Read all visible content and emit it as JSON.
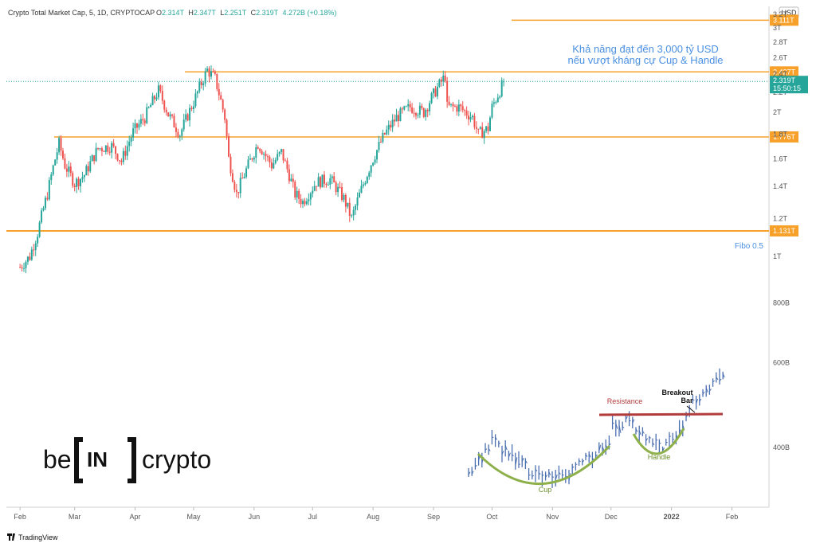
{
  "header": {
    "symbol": "Crypto Total Market Cap, 5, 1D, CRYPTOCAP",
    "open_label": "O",
    "open": "2.314T",
    "high_label": "H",
    "high": "2.347T",
    "low_label": "L",
    "low": "2.251T",
    "close_label": "C",
    "close": "2.319T",
    "change": "4.272B (+0.18%)"
  },
  "currency_badge": "USD",
  "annotation": {
    "line1": "Khả năng đạt đến 3,000 tỷ USD",
    "line2": "nếu vượt kháng cự Cup & Handle"
  },
  "fibo_label": "Fibo 0.5",
  "brand": {
    "left": "be",
    "middle": "IN",
    "right": "crypto"
  },
  "footer": {
    "brand": "TradingView"
  },
  "current_price": {
    "value": "2.319T",
    "countdown": "15:50:15"
  },
  "colors": {
    "up": "#26a69a",
    "down": "#ef5350",
    "level": "#f7a12a",
    "annotation": "#4a90e2",
    "current": "#26a69a"
  },
  "chart_data": {
    "type": "candlestick",
    "yscale": "log",
    "ylim": [
      0.3,
      3.2
    ],
    "y_ticks": [
      "400B",
      "600B",
      "800B",
      "1T",
      "1.2T",
      "1.4T",
      "1.6T",
      "1.8T",
      "2T",
      "2.2T",
      "2.4T",
      "2.6T",
      "2.8T",
      "3T",
      "3.2T"
    ],
    "y_tick_values": [
      0.4,
      0.6,
      0.8,
      1.0,
      1.2,
      1.4,
      1.6,
      1.8,
      2.0,
      2.2,
      2.4,
      2.6,
      2.8,
      3.0,
      3.2
    ],
    "x_ticks": [
      "Feb",
      "Mar",
      "Apr",
      "May",
      "Jun",
      "Jul",
      "Aug",
      "Sep",
      "Oct",
      "Nov",
      "Dec",
      "2022",
      "Feb"
    ],
    "levels": [
      {
        "value": 3.111,
        "label": "3.111T"
      },
      {
        "value": 2.427,
        "label": "2.427T"
      },
      {
        "value": 1.776,
        "label": "1.776T"
      },
      {
        "value": 1.131,
        "label": "1.131T"
      }
    ],
    "close_path": [
      [
        "2021-02-01",
        0.95
      ],
      [
        "2021-02-06",
        1.0
      ],
      [
        "2021-02-10",
        1.12
      ],
      [
        "2021-02-15",
        1.35
      ],
      [
        "2021-02-21",
        1.72
      ],
      [
        "2021-02-24",
        1.55
      ],
      [
        "2021-03-01",
        1.42
      ],
      [
        "2021-03-06",
        1.48
      ],
      [
        "2021-03-13",
        1.68
      ],
      [
        "2021-03-20",
        1.7
      ],
      [
        "2021-03-25",
        1.58
      ],
      [
        "2021-03-31",
        1.82
      ],
      [
        "2021-04-06",
        1.95
      ],
      [
        "2021-04-13",
        2.22
      ],
      [
        "2021-04-18",
        1.98
      ],
      [
        "2021-04-24",
        1.8
      ],
      [
        "2021-05-01",
        2.1
      ],
      [
        "2021-05-08",
        2.45
      ],
      [
        "2021-05-12",
        2.35
      ],
      [
        "2021-05-17",
        1.95
      ],
      [
        "2021-05-19",
        1.6
      ],
      [
        "2021-05-23",
        1.35
      ],
      [
        "2021-05-29",
        1.55
      ],
      [
        "2021-06-03",
        1.72
      ],
      [
        "2021-06-10",
        1.55
      ],
      [
        "2021-06-15",
        1.65
      ],
      [
        "2021-06-22",
        1.35
      ],
      [
        "2021-06-26",
        1.3
      ],
      [
        "2021-07-03",
        1.43
      ],
      [
        "2021-07-10",
        1.45
      ],
      [
        "2021-07-17",
        1.32
      ],
      [
        "2021-07-21",
        1.2
      ],
      [
        "2021-07-26",
        1.38
      ],
      [
        "2021-08-01",
        1.6
      ],
      [
        "2021-08-07",
        1.8
      ],
      [
        "2021-08-13",
        1.95
      ],
      [
        "2021-08-20",
        2.05
      ],
      [
        "2021-08-27",
        2.0
      ],
      [
        "2021-09-03",
        2.25
      ],
      [
        "2021-09-07",
        2.38
      ],
      [
        "2021-09-08",
        2.05
      ],
      [
        "2021-09-14",
        2.05
      ],
      [
        "2021-09-21",
        1.95
      ],
      [
        "2021-09-24",
        1.8
      ],
      [
        "2021-09-29",
        1.85
      ],
      [
        "2021-10-01",
        2.05
      ],
      [
        "2021-10-05",
        2.22
      ],
      [
        "2021-10-07",
        2.319
      ]
    ],
    "inset": {
      "title": "Cup & Handle",
      "labels": [
        "Resistance",
        "Breakout",
        "Bar",
        "Cup",
        "Handle"
      ]
    }
  }
}
